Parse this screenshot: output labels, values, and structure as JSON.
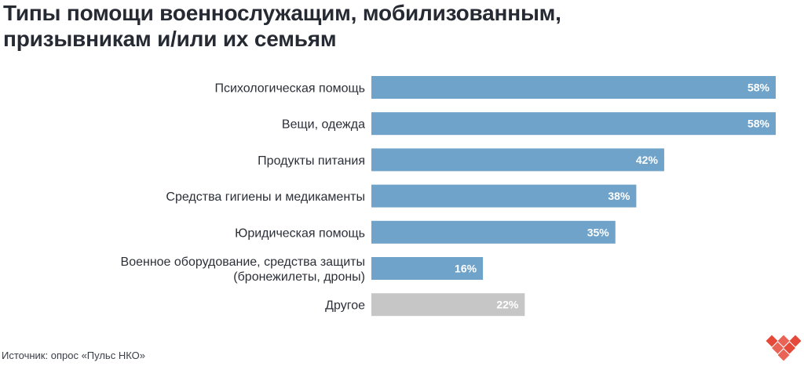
{
  "title_lines": [
    "Типы помощи военнослужащим, мобилизованным,",
    "призывникам и/или их семьям"
  ],
  "source": "Источник: опрос «Пульс НКО»",
  "colors": {
    "bar": "#6fa3c9",
    "bar_other": "#c6c6c6",
    "logo": "#e5493a"
  },
  "chart_data": {
    "type": "bar",
    "orientation": "horizontal",
    "title": "Типы помощи военнослужащим, мобилизованным, призывникам и/или их семьям",
    "categories": [
      [
        "Психологическая помощь"
      ],
      [
        "Вещи, одежда"
      ],
      [
        "Продукты питания"
      ],
      [
        "Средства гигиены и медикаменты"
      ],
      [
        "Юридическая помощь"
      ],
      [
        "Военное оборудование, средства защиты",
        "(бронежилеты, дроны)"
      ],
      [
        "Другое"
      ]
    ],
    "values": [
      58,
      58,
      42,
      38,
      35,
      16,
      22
    ],
    "value_labels": [
      "58%",
      "58%",
      "42%",
      "38%",
      "35%",
      "16%",
      "22%"
    ],
    "highlight": [
      false,
      false,
      false,
      false,
      false,
      false,
      true
    ],
    "unit": "%",
    "xlim": [
      0,
      58
    ],
    "grid": false,
    "legend": "none"
  }
}
